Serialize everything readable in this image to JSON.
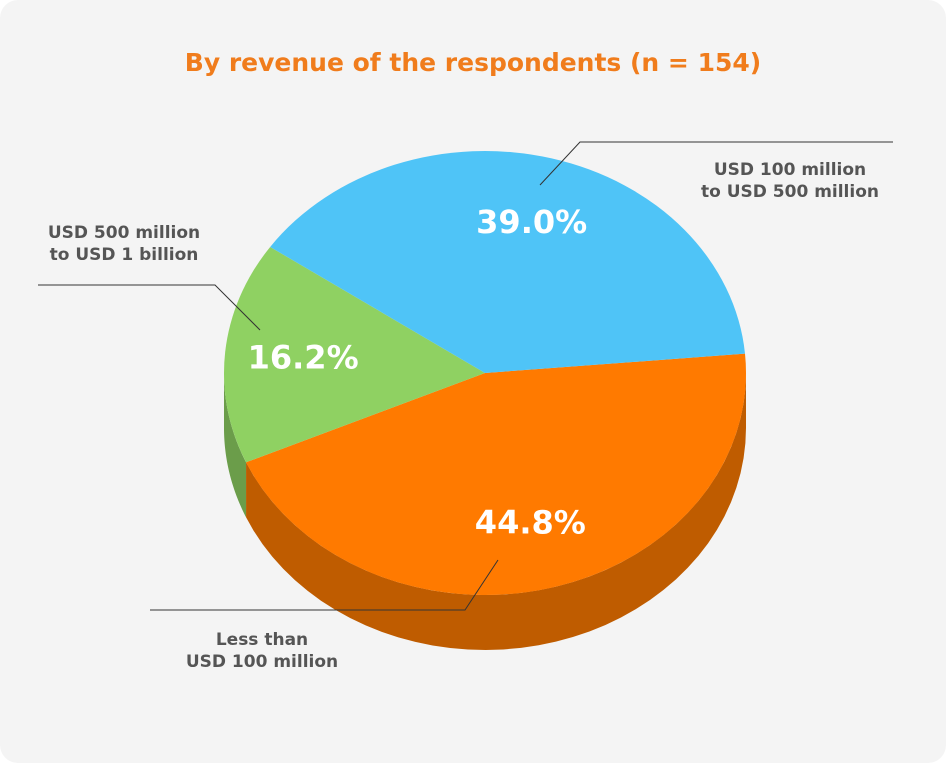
{
  "chart_data": {
    "type": "pie",
    "title": "By revenue of the respondents (n = 154)",
    "categories": [
      "Less than\nUSD 100 million",
      "USD 500 million\nto USD 1 billion",
      "USD 100 million\nto USD 500 million"
    ],
    "values": [
      44.8,
      16.2,
      39.0
    ],
    "value_labels": [
      "44.8%",
      "16.2%",
      "39.0%"
    ],
    "colors": [
      "#ff7a00",
      "#8fd162",
      "#4fc4f7"
    ]
  }
}
